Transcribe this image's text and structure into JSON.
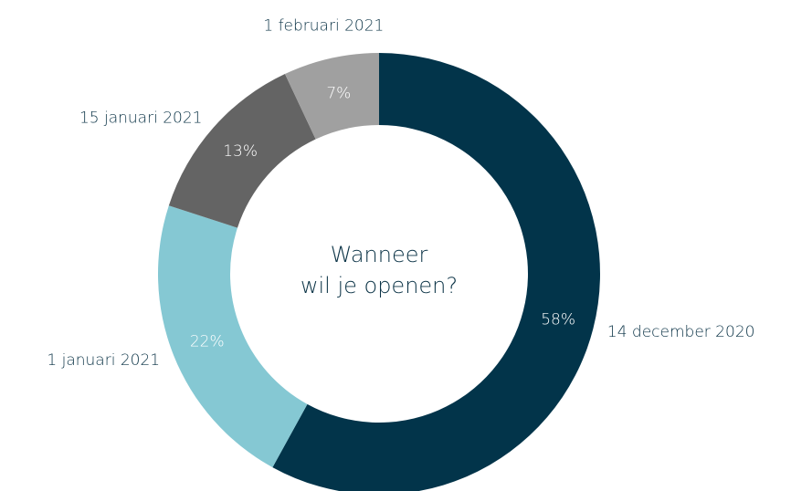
{
  "chart_data": {
    "type": "donut",
    "center_text": [
      "Wanneer",
      "wil je openen?"
    ],
    "categories": [
      "14 december 2020",
      "1 januari 2021",
      "15 januari 2021",
      "1 februari 2021"
    ],
    "values": [
      58,
      22,
      13,
      7
    ],
    "value_labels": [
      "58%",
      "22%",
      "13%",
      "7%"
    ],
    "colors": [
      "#02344a",
      "#85c8d3",
      "#646464",
      "#a0a0a0"
    ]
  }
}
